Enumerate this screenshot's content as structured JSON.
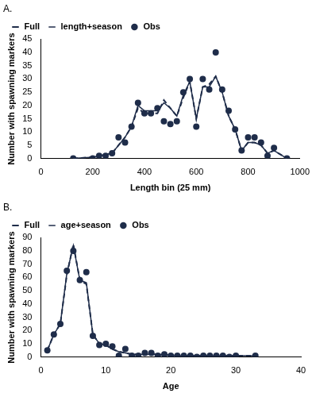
{
  "chart_data": [
    {
      "type": "line",
      "title": "A.",
      "x_label": "Length bin (25 mm)",
      "y_label": "Number with spawning markers",
      "x": [
        125,
        200,
        225,
        250,
        275,
        300,
        325,
        350,
        375,
        400,
        425,
        450,
        475,
        500,
        525,
        550,
        575,
        600,
        625,
        650,
        675,
        700,
        725,
        750,
        775,
        800,
        825,
        850,
        875,
        900,
        950
      ],
      "series": [
        {
          "name": "Full",
          "color": "#1f2d4a",
          "line_style": "dashed",
          "marker": "none",
          "values": [
            0,
            0.5,
            1,
            1.5,
            2,
            5,
            8,
            12,
            19,
            17,
            17,
            17,
            22,
            19,
            16,
            23,
            29,
            15,
            27,
            28,
            31,
            25,
            16,
            11,
            3,
            6,
            6,
            5,
            2,
            3,
            0
          ]
        },
        {
          "name": "length+season",
          "color": "#1f2d4a",
          "line_style": "solid",
          "marker": "none",
          "values": [
            0,
            0.5,
            1,
            1.5,
            2,
            5,
            8,
            12,
            20,
            18,
            18,
            18,
            21,
            19,
            16,
            24,
            29,
            15,
            27,
            27,
            31,
            25,
            16,
            11,
            3,
            6,
            6,
            5,
            2,
            3,
            0
          ]
        },
        {
          "name": "Obs",
          "color": "#1f2d4a",
          "type": "scatter",
          "marker": "circle",
          "values": [
            0,
            0,
            1,
            1,
            2,
            8,
            6,
            12,
            21,
            17,
            17,
            19,
            14,
            13,
            14,
            25,
            30,
            12,
            30,
            26,
            40,
            26,
            18,
            11,
            3,
            8,
            8,
            6,
            1,
            4,
            0
          ]
        }
      ],
      "xlim": [
        0,
        1000
      ],
      "xticks": [
        0,
        200,
        400,
        600,
        800,
        1000
      ],
      "ylim": [
        0,
        45
      ],
      "yticks": [
        0,
        5,
        10,
        15,
        20,
        25,
        30,
        35,
        40,
        45
      ],
      "grid": false,
      "legend": "upper left"
    },
    {
      "type": "line",
      "title": "B.",
      "x_label": "Age",
      "y_label": "Number with spawning markers",
      "x": [
        1,
        2,
        3,
        4,
        5,
        6,
        7,
        8,
        9,
        10,
        11,
        12,
        13,
        14,
        15,
        16,
        17,
        18,
        19,
        20,
        21,
        22,
        23,
        24,
        25,
        26,
        27,
        28,
        29,
        30,
        33
      ],
      "series": [
        {
          "name": "Full",
          "color": "#1f2d4a",
          "line_style": "dashed",
          "marker": "none",
          "values": [
            5,
            17,
            25,
            62,
            85,
            58,
            55,
            17,
            10,
            9,
            6,
            4,
            3,
            2,
            2,
            2,
            2,
            2,
            1.5,
            1.5,
            1,
            1,
            1,
            1,
            1,
            1,
            1,
            1,
            1,
            1,
            1
          ]
        },
        {
          "name": "age+season",
          "color": "#1f2d4a",
          "line_style": "solid",
          "marker": "none",
          "values": [
            5,
            17,
            25,
            63,
            84,
            58,
            56,
            17,
            10,
            9,
            6,
            4,
            3,
            2,
            2,
            2,
            2,
            2,
            1.5,
            1.5,
            1,
            1,
            1,
            1,
            1,
            1,
            1,
            1,
            1,
            1,
            1
          ]
        },
        {
          "name": "Obs",
          "color": "#1f2d4a",
          "type": "scatter",
          "marker": "circle",
          "values": [
            5,
            17,
            25,
            65,
            80,
            58,
            64,
            16,
            9,
            10,
            8,
            1,
            6,
            1,
            1,
            3,
            3,
            1,
            2,
            1,
            1,
            1,
            1,
            0,
            1,
            1,
            1,
            1,
            0,
            1,
            1
          ]
        }
      ],
      "xlim": [
        0,
        40
      ],
      "xticks": [
        0,
        10,
        20,
        30,
        40
      ],
      "ylim": [
        0,
        90
      ],
      "yticks": [
        0,
        10,
        20,
        30,
        40,
        50,
        60,
        70,
        80,
        90
      ],
      "grid": false,
      "legend": "upper left"
    }
  ]
}
